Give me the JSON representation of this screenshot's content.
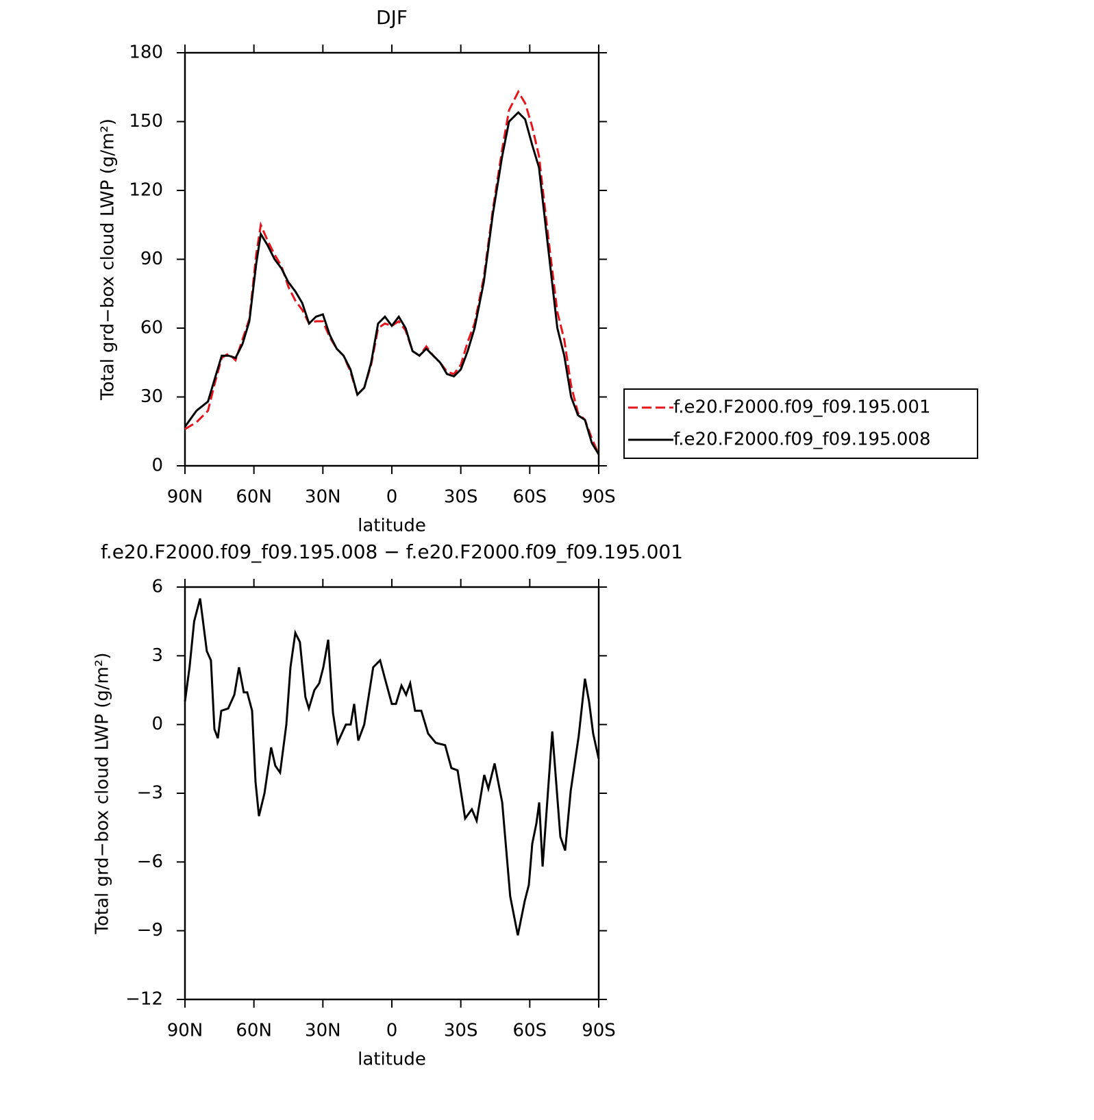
{
  "chart_data": [
    {
      "type": "line",
      "title": "DJF",
      "xlabel": "latitude",
      "ylabel": "Total grd−box cloud LWP (g/m²)",
      "x": [
        90,
        85,
        80,
        77,
        74,
        71,
        68,
        65,
        62,
        59,
        57,
        54,
        51,
        48,
        45,
        42,
        39,
        36,
        33,
        30,
        27,
        24,
        21,
        18,
        15,
        12,
        9,
        6,
        3,
        0,
        -3,
        -6,
        -9,
        -12,
        -15,
        -18,
        -21,
        -24,
        -27,
        -30,
        -33,
        -36,
        -40,
        -44,
        -48,
        -51,
        -55,
        -58,
        -61,
        -64,
        -68,
        -72,
        -75,
        -78,
        -81,
        -84,
        -87,
        -90
      ],
      "series": [
        {
          "name": "f.e20.F2000.f09_f09.195.001",
          "color": "#e8141c",
          "dash": "dashed",
          "values": [
            16,
            19,
            24,
            36,
            47,
            49,
            46,
            55,
            64,
            92,
            105,
            98,
            92,
            87,
            78,
            72,
            68,
            62,
            63,
            63,
            56,
            51,
            48,
            41,
            31,
            34,
            44,
            60,
            62,
            61,
            63,
            59,
            50,
            48,
            52,
            48,
            45,
            41,
            40,
            44,
            54,
            62,
            82,
            112,
            138,
            155,
            163,
            158,
            148,
            135,
            100,
            67,
            55,
            35,
            23,
            20,
            12,
            5
          ]
        },
        {
          "name": "f.e20.F2000.f09_f09.195.008",
          "color": "#000000",
          "dash": "solid",
          "values": [
            17,
            24,
            28,
            38,
            48,
            48,
            47,
            53,
            63,
            88,
            101,
            96,
            90,
            86,
            80,
            76,
            71,
            62,
            65,
            66,
            57,
            51,
            48,
            42,
            31,
            34,
            45,
            62,
            65,
            61,
            65,
            60,
            50,
            48,
            51,
            48,
            45,
            40,
            39,
            42,
            50,
            60,
            80,
            110,
            135,
            150,
            154,
            151,
            140,
            130,
            95,
            60,
            48,
            30,
            22,
            20,
            10,
            5
          ]
        }
      ],
      "xlim": [
        90,
        -90
      ],
      "xticks": [
        {
          "value": 90,
          "label": "90N"
        },
        {
          "value": 60,
          "label": "60N"
        },
        {
          "value": 30,
          "label": "30N"
        },
        0,
        {
          "value": -30,
          "label": "30S"
        },
        {
          "value": -60,
          "label": "60S"
        },
        {
          "value": -90,
          "label": "90S"
        }
      ],
      "ylim": [
        0,
        180
      ],
      "yticks": [
        0,
        30,
        60,
        90,
        120,
        150,
        180
      ],
      "legend": "right"
    },
    {
      "type": "line",
      "title": "f.e20.F2000.f09_f09.195.008 − f.e20.F2000.f09_f09.195.001",
      "xlabel": "latitude",
      "ylabel": "Total grd−box cloud LWP (g/m²)",
      "x": [
        90,
        88,
        86,
        83.4,
        80.5,
        78.7,
        77.2,
        75.7,
        74.2,
        71.2,
        68.5,
        66.5,
        64.4,
        62.9,
        60.8,
        59.3,
        57.8,
        55.4,
        52.5,
        50.7,
        48.6,
        45.9,
        44.1,
        42,
        40,
        37.6,
        36.1,
        33.7,
        31.6,
        29.8,
        27.7,
        25.6,
        23.6,
        20,
        17.9,
        16.4,
        14.6,
        12,
        8.1,
        5.1,
        2.7,
        0,
        -1.8,
        -4.2,
        -6.2,
        -8,
        -10.1,
        -12.8,
        -15.8,
        -19.1,
        -23.2,
        -25.9,
        -28.6,
        -31.9,
        -34.8,
        -36.9,
        -40.2,
        -42,
        -44.7,
        -48,
        -51.5,
        -54.8,
        -57.8,
        -59.6,
        -61.1,
        -62.9,
        -64.1,
        -65.6,
        -69.8,
        -73.3,
        -75.4,
        -77.8,
        -81.3,
        -84,
        -85.8,
        -87.6,
        -90
      ],
      "series": [
        {
          "color": "#000000",
          "dash": "solid",
          "values": [
            1.0,
            2.5,
            4.5,
            5.5,
            3.2,
            2.8,
            -0.2,
            -0.6,
            0.6,
            0.7,
            1.3,
            2.5,
            1.4,
            1.4,
            0.6,
            -2.5,
            -4,
            -3,
            -1,
            -1.8,
            -2.1,
            0,
            2.5,
            4.0,
            3.6,
            1.2,
            0.7,
            1.5,
            1.8,
            2.5,
            3.7,
            0.5,
            -0.8,
            0,
            0,
            0.9,
            -0.7,
            0,
            2.5,
            2.8,
            1.9,
            0.9,
            0.9,
            1.7,
            1.3,
            1.8,
            0.6,
            0.6,
            -0.4,
            -0.8,
            -0.9,
            -1.9,
            -2.0,
            -4.1,
            -3.7,
            -4.2,
            -2.2,
            -2.8,
            -1.7,
            -3.4,
            -7.5,
            -9.2,
            -7.7,
            -7.0,
            -5.2,
            -4.3,
            -3.4,
            -6.2,
            -0.3,
            -4.9,
            -5.5,
            -2.9,
            -0.5,
            2.0,
            1.0,
            -0.4,
            -1.5
          ]
        }
      ],
      "xlim": [
        90,
        -90
      ],
      "xticks": [
        {
          "value": 90,
          "label": "90N"
        },
        {
          "value": 60,
          "label": "60N"
        },
        {
          "value": 30,
          "label": "30N"
        },
        0,
        {
          "value": -30,
          "label": "30S"
        },
        {
          "value": -60,
          "label": "60S"
        },
        {
          "value": -90,
          "label": "90S"
        }
      ],
      "ylim": [
        -12,
        6
      ],
      "yticks": [
        {
          "value": -12,
          "label": "−12"
        },
        {
          "value": -9,
          "label": "−9"
        },
        {
          "value": -6,
          "label": "−6"
        },
        {
          "value": -3,
          "label": "−3"
        },
        0,
        3,
        6
      ]
    }
  ]
}
